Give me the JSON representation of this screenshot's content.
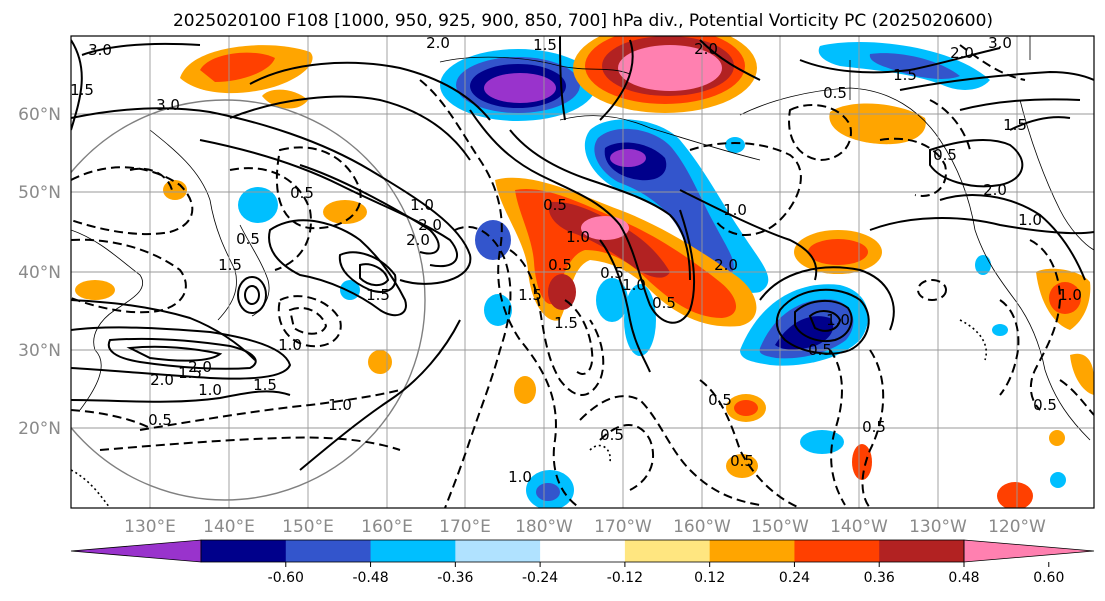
{
  "title": "2025020100 F108 [1000, 950, 925, 900, 850, 700] hPa div., Potential Vorticity PC (2025020600)",
  "lat_labels": [
    "60°N",
    "50°N",
    "40°N",
    "30°N",
    "20°N"
  ],
  "lon_labels": [
    "130°E",
    "140°E",
    "150°E",
    "160°E",
    "170°E",
    "180°W",
    "170°W",
    "160°W",
    "150°W",
    "140°W",
    "130°W",
    "120°W"
  ],
  "colorbar": {
    "colors": [
      "#9933cc",
      "#00008b",
      "#3355cc",
      "#00bfff",
      "#b0e2ff",
      "#ffffff",
      "#ffe680",
      "#ffa500",
      "#ff4000",
      "#b22222",
      "#ff80b0"
    ],
    "tick_labels": [
      "-0.60",
      "-0.48",
      "-0.36",
      "-0.24",
      "-0.12",
      "0.12",
      "0.24",
      "0.36",
      "0.48",
      "0.60"
    ]
  },
  "contour_labels": [
    "3.0",
    "2.0",
    "3.0",
    "1.5",
    "2.0",
    "1.5",
    "0.5",
    "2.0",
    "1.0",
    "2.0",
    "1.5",
    "2.0",
    "0.5",
    "1.5",
    "2.0",
    "1.0",
    "1.5",
    "1.0",
    "0.5",
    "1.0",
    "1.5",
    "1.0",
    "0.5",
    "0.5",
    "0.5",
    "1.5",
    "1.5",
    "1.0",
    "0.5",
    "0.5",
    "2.0",
    "1.0",
    "1.0",
    "0.5",
    "0.5",
    "1.0",
    "3.0",
    "2.0",
    "1.5",
    "0.5",
    "2.0",
    "1.0",
    "0.5",
    "1.0",
    "1.5",
    "0.5",
    "0.5",
    "0.5"
  ]
}
